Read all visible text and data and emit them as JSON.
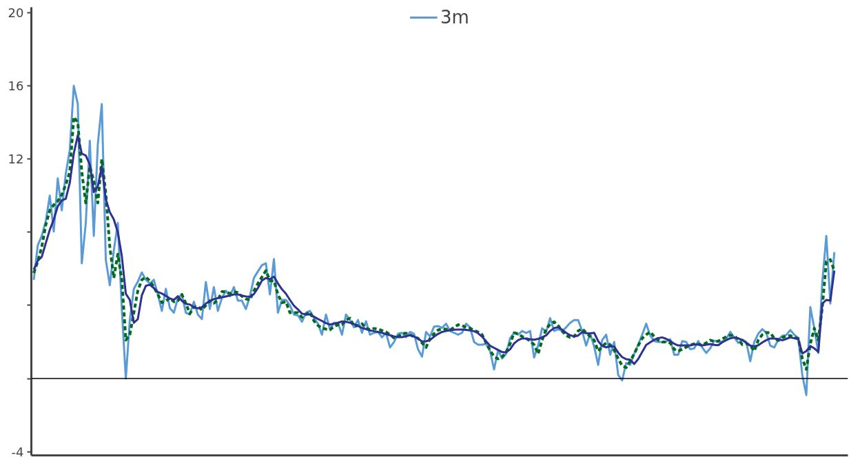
{
  "chart_data": {
    "type": "line",
    "legend": "top",
    "grid": false,
    "tick_labels": "y",
    "line_style": "solid",
    "marker": "none",
    "ylim": [
      -4.2,
      20.3
    ],
    "yticks": [
      -4,
      {
        "value": 0,
        "label": null
      },
      {
        "value": 4,
        "label": null
      },
      {
        "value": 8,
        "label": null
      },
      12,
      16,
      20
    ],
    "ref_lines": [
      {
        "axis": "y",
        "value": 0,
        "label": null,
        "color": "#000000"
      }
    ],
    "categories": [
      null,
      null,
      null,
      null,
      null,
      null,
      null,
      null,
      null,
      null,
      null,
      null,
      null,
      null,
      null,
      null,
      null,
      null,
      null,
      null,
      null,
      null,
      null,
      null,
      null,
      null,
      null,
      null,
      null,
      null,
      null,
      null,
      null,
      null,
      null,
      null,
      null,
      null,
      null,
      null,
      null,
      null,
      null,
      null,
      null,
      null,
      null,
      null,
      null,
      null,
      null,
      null,
      null,
      null,
      null,
      null,
      null,
      null,
      null,
      null,
      null,
      null,
      null,
      null,
      null,
      null,
      null,
      null,
      null,
      null,
      null,
      null,
      null,
      null,
      null,
      null,
      null,
      null,
      null,
      null,
      null,
      null,
      null,
      null,
      null,
      null,
      null,
      null,
      null,
      null,
      null,
      null,
      null,
      null,
      null,
      null,
      null,
      null,
      null,
      null,
      null,
      null,
      null,
      null,
      null,
      null,
      null,
      null,
      null,
      null,
      null,
      null,
      null,
      null,
      null,
      null,
      null,
      null,
      null,
      null,
      null,
      null,
      null,
      null,
      null,
      null,
      null,
      null,
      null,
      null,
      null,
      null,
      null,
      null,
      null,
      null,
      null,
      null,
      null,
      null,
      null,
      null,
      null,
      null,
      null,
      null,
      null,
      null,
      null,
      null,
      null,
      null,
      null,
      null,
      null,
      null,
      null,
      null,
      null,
      null,
      null,
      null,
      null,
      null,
      null,
      null,
      null,
      null,
      null,
      null,
      null,
      null,
      null,
      null,
      null,
      null,
      null,
      null,
      null,
      null,
      null,
      null,
      null,
      null,
      null,
      null,
      null,
      null,
      null,
      null,
      null,
      null,
      null,
      null,
      null,
      null,
      null,
      null,
      null,
      null,
      null
    ],
    "series": [
      {
        "name": "3m",
        "color": "#5b9bd5",
        "values": [
          5.4,
          7.28,
          7.8,
          8.6,
          10.0,
          8.04,
          10.94,
          9.2,
          11.2,
          12.5,
          16.0,
          15.02,
          6.3,
          8.5,
          13.0,
          7.8,
          12.8,
          15.0,
          6.5,
          5.1,
          7.0,
          8.5,
          3.8,
          0.0,
          3.2,
          4.9,
          5.3,
          5.8,
          5.4,
          5.2,
          5.4,
          4.6,
          3.7,
          4.9,
          3.85,
          3.6,
          4.4,
          4.6,
          3.6,
          3.5,
          4.2,
          3.5,
          3.25,
          5.28,
          3.8,
          5.0,
          3.7,
          4.4,
          4.8,
          4.5,
          5.0,
          4.26,
          4.26,
          3.8,
          4.5,
          5.5,
          5.86,
          6.2,
          6.3,
          4.6,
          6.53,
          3.6,
          4.3,
          4.3,
          4.0,
          3.5,
          3.45,
          3.1,
          3.6,
          3.7,
          3.3,
          3.0,
          2.4,
          3.5,
          2.7,
          3.05,
          3.05,
          2.4,
          3.5,
          3.2,
          2.8,
          3.2,
          2.5,
          3.13,
          2.4,
          2.5,
          2.55,
          2.25,
          2.5,
          1.7,
          2.0,
          2.45,
          2.5,
          2.26,
          2.55,
          2.45,
          1.6,
          1.2,
          2.55,
          2.3,
          2.84,
          2.87,
          2.77,
          3.0,
          2.6,
          2.5,
          2.4,
          2.5,
          3.0,
          2.8,
          2.0,
          1.85,
          1.85,
          1.9,
          1.5,
          0.5,
          1.55,
          1.1,
          1.35,
          2.2,
          2.5,
          2.4,
          2.6,
          2.49,
          2.6,
          1.15,
          1.8,
          2.75,
          2.55,
          3.3,
          2.6,
          2.7,
          2.6,
          2.8,
          3.05,
          3.2,
          3.2,
          2.6,
          1.8,
          2.45,
          1.75,
          0.75,
          2.1,
          2.4,
          1.3,
          2.0,
          0.2,
          -0.1,
          0.85,
          0.75,
          1.35,
          1.85,
          2.4,
          3.0,
          2.35,
          2.05,
          2.0,
          2.0,
          2.02,
          2.15,
          1.3,
          1.3,
          2.05,
          2.0,
          1.6,
          1.65,
          2.05,
          1.7,
          1.4,
          1.65,
          2.07,
          2.0,
          2.02,
          2.17,
          2.55,
          2.25,
          1.95,
          2.14,
          2.0,
          0.95,
          2.0,
          2.45,
          2.7,
          2.5,
          1.8,
          1.7,
          2.13,
          2.34,
          2.38,
          2.65,
          2.4,
          2.2,
          0.2,
          -0.9,
          3.9,
          2.75,
          1.4,
          5.3,
          7.8,
          4.1,
          6.91
        ]
      },
      {
        "color": "#006b1f",
        "line_style": "dashed",
        "values": [
          5.77,
          6.4,
          7.2,
          8.4,
          9.2,
          9.5,
          9.7,
          10.05,
          10.6,
          11.3,
          14.3,
          14.0,
          11.3,
          9.6,
          11.6,
          10.8,
          9.6,
          12.0,
          10.11,
          7.2,
          5.5,
          6.8,
          5.4,
          2.1,
          2.4,
          3.6,
          4.8,
          5.4,
          5.55,
          5.35,
          5.0,
          4.6,
          4.15,
          4.25,
          4.4,
          4.2,
          4.25,
          4.6,
          4.1,
          3.55,
          3.9,
          3.95,
          3.75,
          4.0,
          4.25,
          4.12,
          4.3,
          4.75,
          4.75,
          4.65,
          4.75,
          4.7,
          4.5,
          4.35,
          4.3,
          4.8,
          5.2,
          5.55,
          5.9,
          5.35,
          5.35,
          4.6,
          4.15,
          4.2,
          3.6,
          3.6,
          3.6,
          3.35,
          3.5,
          3.65,
          3.15,
          2.9,
          2.77,
          2.7,
          2.66,
          2.85,
          2.94,
          2.94,
          3.2,
          3.3,
          2.85,
          2.9,
          3.0,
          2.75,
          2.67,
          2.74,
          2.7,
          2.63,
          2.55,
          2.4,
          2.22,
          2.3,
          2.45,
          2.48,
          2.4,
          2.28,
          2.2,
          1.95,
          1.7,
          2.2,
          2.45,
          2.65,
          2.72,
          2.7,
          2.65,
          2.8,
          2.94,
          2.9,
          2.8,
          2.75,
          2.64,
          2.54,
          2.4,
          1.95,
          1.55,
          1.2,
          1.08,
          1.18,
          1.45,
          1.9,
          2.5,
          2.45,
          2.3,
          2.2,
          2.05,
          1.85,
          1.35,
          2.1,
          2.7,
          2.97,
          3.1,
          2.9,
          2.6,
          2.35,
          2.25,
          2.3,
          2.6,
          2.73,
          2.5,
          2.3,
          2.1,
          1.5,
          1.75,
          1.95,
          1.85,
          1.55,
          1.1,
          0.7,
          0.6,
          0.95,
          1.35,
          1.8,
          2.2,
          2.4,
          2.55,
          2.3,
          2.1,
          2.0,
          2.0,
          1.95,
          1.6,
          1.5,
          1.6,
          1.72,
          1.82,
          1.9,
          1.88,
          1.82,
          1.95,
          2.1,
          2.03,
          2.05,
          2.17,
          2.28,
          2.37,
          2.33,
          2.15,
          1.86,
          1.93,
          1.8,
          1.5,
          2.1,
          2.4,
          2.52,
          2.5,
          2.2,
          2.08,
          2.24,
          2.32,
          2.35,
          2.25,
          2.19,
          1.1,
          0.5,
          1.9,
          2.75,
          2.1,
          3.9,
          6.4,
          6.5,
          5.9
        ]
      },
      {
        "color": "#2e3192",
        "values": [
          5.96,
          6.44,
          6.65,
          7.4,
          8.13,
          8.7,
          9.42,
          9.74,
          9.83,
          10.7,
          12.3,
          13.3,
          12.3,
          12.19,
          11.7,
          10.2,
          10.5,
          11.6,
          9.8,
          9.1,
          8.7,
          8.0,
          6.7,
          4.64,
          4.3,
          3.05,
          3.25,
          4.55,
          5.07,
          5.13,
          4.95,
          4.73,
          4.65,
          4.52,
          4.38,
          4.3,
          4.5,
          4.25,
          4.08,
          4.05,
          3.9,
          3.84,
          3.9,
          4.1,
          4.24,
          4.34,
          4.4,
          4.44,
          4.49,
          4.54,
          4.6,
          4.6,
          4.54,
          4.49,
          4.47,
          4.62,
          4.95,
          5.36,
          5.5,
          5.43,
          5.57,
          5.2,
          4.88,
          4.64,
          4.3,
          3.98,
          3.78,
          3.55,
          3.51,
          3.5,
          3.38,
          3.26,
          3.15,
          3.03,
          2.95,
          3.0,
          3.05,
          3.12,
          3.1,
          3.05,
          2.98,
          2.88,
          2.77,
          2.7,
          2.63,
          2.59,
          2.55,
          2.5,
          2.43,
          2.37,
          2.3,
          2.26,
          2.26,
          2.32,
          2.37,
          2.3,
          2.18,
          2.03,
          2.04,
          2.11,
          2.29,
          2.44,
          2.55,
          2.6,
          2.64,
          2.67,
          2.68,
          2.68,
          2.66,
          2.63,
          2.59,
          2.48,
          2.29,
          2.04,
          1.79,
          1.68,
          1.56,
          1.45,
          1.43,
          1.6,
          1.92,
          2.1,
          2.19,
          2.19,
          2.15,
          2.12,
          2.17,
          2.25,
          2.36,
          2.6,
          2.76,
          2.81,
          2.67,
          2.5,
          2.37,
          2.3,
          2.35,
          2.54,
          2.48,
          2.47,
          2.5,
          2.05,
          1.78,
          1.71,
          1.76,
          1.75,
          1.42,
          1.17,
          1.06,
          1.03,
          0.8,
          1.07,
          1.45,
          1.84,
          1.98,
          2.12,
          2.21,
          2.25,
          2.17,
          2.06,
          1.9,
          1.81,
          1.81,
          1.81,
          1.81,
          1.87,
          1.86,
          1.81,
          1.85,
          1.89,
          1.84,
          1.82,
          1.98,
          2.1,
          2.2,
          2.24,
          2.2,
          2.1,
          1.95,
          1.8,
          1.76,
          1.82,
          1.97,
          2.1,
          2.19,
          2.19,
          2.16,
          2.09,
          2.17,
          2.25,
          2.21,
          2.15,
          1.37,
          1.5,
          1.78,
          1.65,
          1.46,
          4.1,
          4.3,
          4.26,
          5.9
        ]
      }
    ]
  }
}
